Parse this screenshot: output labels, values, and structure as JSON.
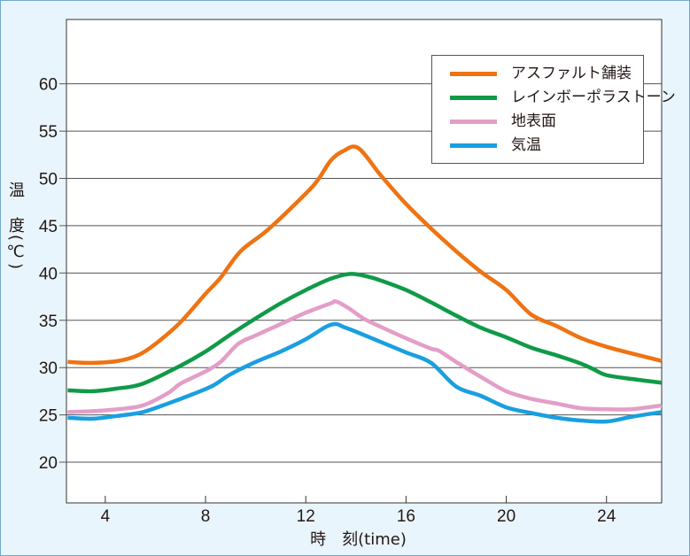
{
  "chart_data": {
    "type": "line",
    "title": "",
    "xlabel": "時　刻(time)",
    "ylabel": "温　度(℃)",
    "xlim": [
      2.45,
      26.2
    ],
    "ylim": [
      15.7,
      66.8
    ],
    "xticks": [
      4,
      8,
      12,
      16,
      20,
      24
    ],
    "yticks": [
      20,
      25,
      30,
      35,
      40,
      45,
      50,
      55,
      60
    ],
    "grid": "horizontal",
    "legend": "top-right",
    "series": [
      {
        "name": "アスファルト舗装",
        "color": "#ee7313",
        "points": [
          [
            2.5,
            30.6
          ],
          [
            3.5,
            30.5
          ],
          [
            4.5,
            30.7
          ],
          [
            5.3,
            31.3
          ],
          [
            6,
            32.5
          ],
          [
            7,
            34.8
          ],
          [
            8,
            37.8
          ],
          [
            8.6,
            39.5
          ],
          [
            9.4,
            42.3
          ],
          [
            10.5,
            44.6
          ],
          [
            12,
            48.4
          ],
          [
            12.5,
            49.9
          ],
          [
            13,
            51.9
          ],
          [
            13.5,
            52.9
          ],
          [
            14.1,
            53.2
          ],
          [
            15,
            50.3
          ],
          [
            16,
            47.3
          ],
          [
            17,
            44.7
          ],
          [
            18,
            42.3
          ],
          [
            19,
            40.1
          ],
          [
            20,
            38.2
          ],
          [
            21,
            35.6
          ],
          [
            22,
            34.4
          ],
          [
            23,
            33.1
          ],
          [
            24,
            32.2
          ],
          [
            25,
            31.5
          ],
          [
            26.2,
            30.7
          ]
        ]
      },
      {
        "name": "レインボーポラストーン",
        "color": "#109a48",
        "points": [
          [
            2.5,
            27.6
          ],
          [
            3.5,
            27.5
          ],
          [
            4.5,
            27.8
          ],
          [
            5.5,
            28.3
          ],
          [
            7,
            30.2
          ],
          [
            8,
            31.7
          ],
          [
            9,
            33.5
          ],
          [
            10,
            35.2
          ],
          [
            11,
            36.8
          ],
          [
            12,
            38.2
          ],
          [
            13,
            39.4
          ],
          [
            13.8,
            39.9
          ],
          [
            14.5,
            39.6
          ],
          [
            15,
            39.2
          ],
          [
            16,
            38.2
          ],
          [
            17,
            36.9
          ],
          [
            18,
            35.5
          ],
          [
            19,
            34.2
          ],
          [
            20,
            33.2
          ],
          [
            21,
            32.1
          ],
          [
            22,
            31.3
          ],
          [
            23,
            30.4
          ],
          [
            23.5,
            29.8
          ],
          [
            24,
            29.2
          ],
          [
            25,
            28.8
          ],
          [
            26.2,
            28.4
          ]
        ]
      },
      {
        "name": "地表面",
        "color": "#e39ec8",
        "points": [
          [
            2.5,
            25.3
          ],
          [
            3.5,
            25.4
          ],
          [
            4.5,
            25.6
          ],
          [
            5.5,
            26
          ],
          [
            6.5,
            27.3
          ],
          [
            7,
            28.3
          ],
          [
            8,
            29.6
          ],
          [
            8.6,
            30.6
          ],
          [
            9.3,
            32.5
          ],
          [
            10,
            33.4
          ],
          [
            11,
            34.6
          ],
          [
            12,
            35.8
          ],
          [
            13,
            36.8
          ],
          [
            13.2,
            37
          ],
          [
            13.7,
            36.3
          ],
          [
            14.3,
            35.2
          ],
          [
            15,
            34.3
          ],
          [
            16,
            33.1
          ],
          [
            17,
            32
          ],
          [
            17.3,
            31.8
          ],
          [
            18,
            30.6
          ],
          [
            19,
            29
          ],
          [
            20,
            27.5
          ],
          [
            21,
            26.7
          ],
          [
            22,
            26.2
          ],
          [
            23,
            25.7
          ],
          [
            24,
            25.6
          ],
          [
            25,
            25.6
          ],
          [
            26.2,
            26
          ]
        ]
      },
      {
        "name": "気温",
        "color": "#1a9fe0",
        "points": [
          [
            2.5,
            24.7
          ],
          [
            3.5,
            24.6
          ],
          [
            4.5,
            24.9
          ],
          [
            5.5,
            25.3
          ],
          [
            6.5,
            26.2
          ],
          [
            7.5,
            27.2
          ],
          [
            8.3,
            28.1
          ],
          [
            9,
            29.3
          ],
          [
            10,
            30.6
          ],
          [
            11,
            31.7
          ],
          [
            12,
            33
          ],
          [
            12.8,
            34.3
          ],
          [
            13.2,
            34.6
          ],
          [
            13.5,
            34.3
          ],
          [
            14,
            33.8
          ],
          [
            15,
            32.7
          ],
          [
            16,
            31.6
          ],
          [
            17,
            30.5
          ],
          [
            18,
            28
          ],
          [
            19,
            27
          ],
          [
            20,
            25.8
          ],
          [
            21,
            25.2
          ],
          [
            22,
            24.7
          ],
          [
            23,
            24.4
          ],
          [
            24,
            24.3
          ],
          [
            25,
            24.8
          ],
          [
            26.2,
            25.3
          ]
        ]
      }
    ]
  }
}
